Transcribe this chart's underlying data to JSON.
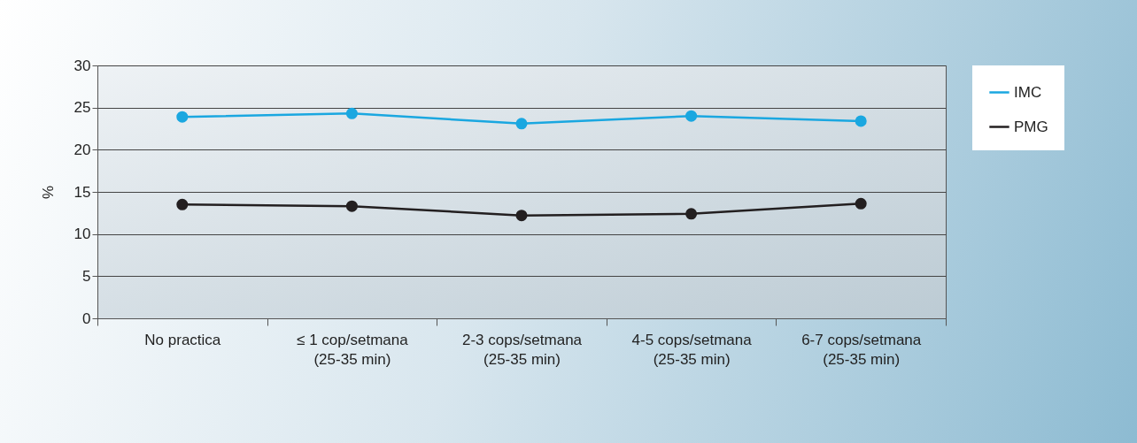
{
  "chart_data": {
    "type": "line",
    "ylabel": "%",
    "categories": [
      "No practica",
      "≤ 1 cop/setmana\n(25-35 min)",
      "2-3 cops/setmana\n(25-35 min)",
      "4-5 cops/setmana\n(25-35 min)",
      "6-7 cops/setmana\n(25-35 min)"
    ],
    "series": [
      {
        "name": "IMC",
        "color": "#1aa7e0",
        "values": [
          23.9,
          24.3,
          23.1,
          24.0,
          23.4
        ]
      },
      {
        "name": "PMG",
        "color": "#231f20",
        "values": [
          13.5,
          13.3,
          12.2,
          12.4,
          13.6
        ]
      }
    ],
    "ylim": [
      0,
      30
    ],
    "yticks": [
      0,
      5,
      10,
      15,
      20,
      25,
      30
    ],
    "grid": "y",
    "legend": "right",
    "marker": "circle",
    "line_style": "solid"
  }
}
